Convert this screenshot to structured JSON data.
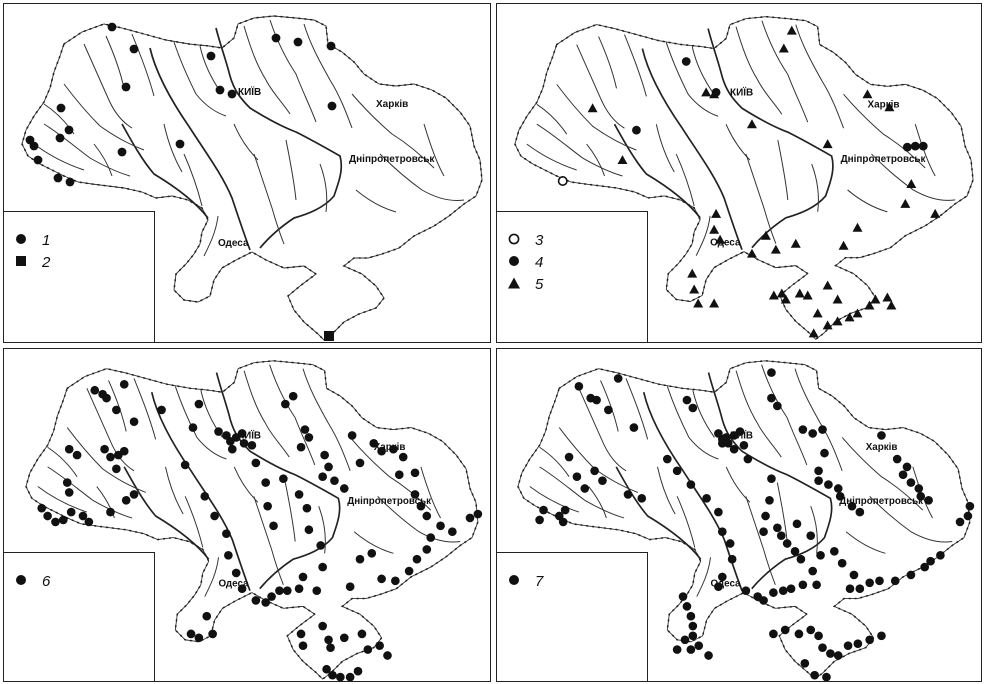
{
  "cities": {
    "kyiv": "КИЇВ",
    "kharkiv": "Харків",
    "dnipro": "Дніпропетровськ",
    "odesa": "Одеса"
  },
  "panels": [
    {
      "legend": [
        {
          "symbol": "filled-circle",
          "label": "1"
        },
        {
          "symbol": "filled-square",
          "label": "2"
        }
      ]
    },
    {
      "legend": [
        {
          "symbol": "open-circle",
          "label": "3"
        },
        {
          "symbol": "filled-circle",
          "label": "4"
        },
        {
          "symbol": "filled-triangle",
          "label": "5"
        }
      ]
    },
    {
      "legend": [
        {
          "symbol": "filled-circle",
          "label": "6"
        }
      ]
    },
    {
      "legend": [
        {
          "symbol": "filled-circle",
          "label": "7"
        }
      ]
    }
  ]
}
